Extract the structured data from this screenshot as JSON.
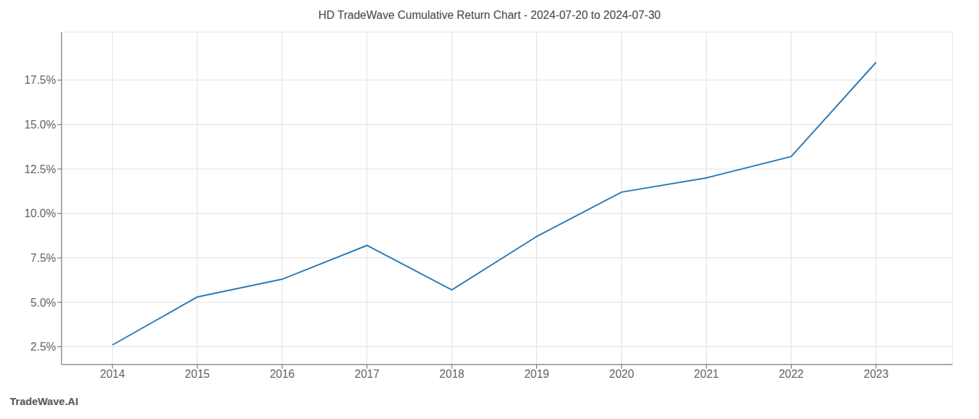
{
  "chart_data": {
    "type": "line",
    "title": "HD TradeWave Cumulative Return Chart - 2024-07-20 to 2024-07-30",
    "annotations": [
      "TradeWave.AI"
    ],
    "x": [
      2014,
      2015,
      2016,
      2017,
      2018,
      2019,
      2020,
      2021,
      2022,
      2023
    ],
    "values": [
      2.6,
      5.3,
      6.3,
      8.2,
      5.7,
      8.7,
      11.2,
      12.0,
      13.2,
      18.5
    ],
    "color": "#2878b5",
    "xlim": [
      2013.4,
      2023.9
    ],
    "ylim": [
      1.5,
      20.2
    ],
    "xticks": [
      2014,
      2015,
      2016,
      2017,
      2018,
      2019,
      2020,
      2021,
      2022,
      2023
    ],
    "yticks": [
      {
        "value": 2.5,
        "label": "2.5%"
      },
      {
        "value": 5.0,
        "label": "5.0%"
      },
      {
        "value": 7.5,
        "label": "7.5%"
      },
      {
        "value": 10.0,
        "label": "10.0%"
      },
      {
        "value": 12.5,
        "label": "12.5%"
      },
      {
        "value": 15.0,
        "label": "15.0%"
      },
      {
        "value": 17.5,
        "label": "17.5%"
      }
    ],
    "grid": true
  }
}
